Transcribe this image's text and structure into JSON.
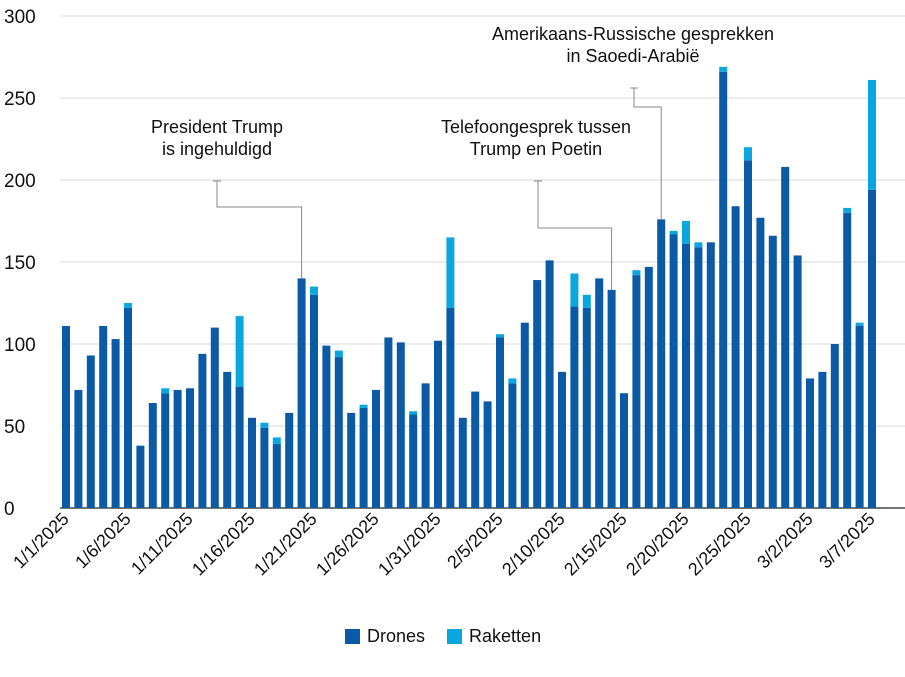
{
  "chart_data": {
    "type": "bar",
    "stacked": true,
    "colors": {
      "drones": "#0a5aa5",
      "raketten": "#0aa6e0"
    },
    "ylim": [
      0,
      300
    ],
    "yticks": [
      0,
      50,
      100,
      150,
      200,
      250,
      300
    ],
    "grid": true,
    "legend_position": "bottom-center",
    "x_tick_labels": [
      "1/1/2025",
      "1/6/2025",
      "1/11/2025",
      "1/16/2025",
      "1/21/2025",
      "1/26/2025",
      "1/31/2025",
      "2/5/2025",
      "2/10/2025",
      "2/15/2025",
      "2/20/2025",
      "2/25/2025",
      "3/2/2025",
      "3/7/2025"
    ],
    "x_tick_every": 5,
    "categories": [
      "1/1/2025",
      "1/2/2025",
      "1/3/2025",
      "1/4/2025",
      "1/5/2025",
      "1/6/2025",
      "1/7/2025",
      "1/8/2025",
      "1/9/2025",
      "1/10/2025",
      "1/11/2025",
      "1/12/2025",
      "1/13/2025",
      "1/14/2025",
      "1/15/2025",
      "1/16/2025",
      "1/17/2025",
      "1/18/2025",
      "1/19/2025",
      "1/20/2025",
      "1/21/2025",
      "1/22/2025",
      "1/23/2025",
      "1/24/2025",
      "1/25/2025",
      "1/26/2025",
      "1/27/2025",
      "1/28/2025",
      "1/29/2025",
      "1/30/2025",
      "1/31/2025",
      "2/1/2025",
      "2/2/2025",
      "2/3/2025",
      "2/4/2025",
      "2/5/2025",
      "2/6/2025",
      "2/7/2025",
      "2/8/2025",
      "2/9/2025",
      "2/10/2025",
      "2/11/2025",
      "2/12/2025",
      "2/13/2025",
      "2/14/2025",
      "2/15/2025",
      "2/16/2025",
      "2/17/2025",
      "2/18/2025",
      "2/19/2025",
      "2/20/2025",
      "2/21/2025",
      "2/22/2025",
      "2/23/2025",
      "2/24/2025",
      "2/25/2025",
      "2/26/2025",
      "2/27/2025",
      "2/28/2025",
      "3/1/2025",
      "3/2/2025",
      "3/3/2025",
      "3/4/2025",
      "3/5/2025",
      "3/6/2025",
      "3/7/2025"
    ],
    "series": [
      {
        "name": "Drones",
        "values": [
          111,
          72,
          93,
          111,
          103,
          122,
          38,
          64,
          70,
          72,
          73,
          94,
          110,
          83,
          74,
          55,
          49,
          39,
          58,
          140,
          130,
          99,
          92,
          58,
          61,
          72,
          104,
          101,
          57,
          76,
          102,
          122,
          55,
          71,
          65,
          104,
          76,
          113,
          139,
          151,
          83,
          123,
          122,
          140,
          133,
          70,
          142,
          147,
          176,
          167,
          161,
          159,
          162,
          266,
          184,
          212,
          177,
          166,
          208,
          154,
          79,
          83,
          100,
          180,
          111,
          194
        ]
      },
      {
        "name": "Raketten",
        "values": [
          0,
          0,
          0,
          0,
          0,
          3,
          0,
          0,
          3,
          0,
          0,
          0,
          0,
          0,
          43,
          0,
          3,
          4,
          0,
          0,
          5,
          0,
          4,
          0,
          2,
          0,
          0,
          0,
          2,
          0,
          0,
          43,
          0,
          0,
          0,
          2,
          3,
          0,
          0,
          0,
          0,
          20,
          8,
          0,
          0,
          0,
          3,
          0,
          0,
          2,
          14,
          3,
          0,
          3,
          0,
          8,
          0,
          0,
          0,
          0,
          0,
          0,
          0,
          3,
          2,
          67
        ]
      }
    ],
    "annotations": [
      {
        "lines": [
          "President Trump",
          "is ingehuldigd"
        ],
        "bar_index": 19
      },
      {
        "lines": [
          "Telefoongesprek tussen",
          "Trump en Poetin"
        ],
        "bar_index": 44
      },
      {
        "lines": [
          "Amerikaans-Russische gesprekken",
          "in Saoedi-Arabië"
        ],
        "bar_index": 48
      }
    ]
  },
  "legend": {
    "drones_label": "Drones",
    "raketten_label": "Raketten"
  }
}
